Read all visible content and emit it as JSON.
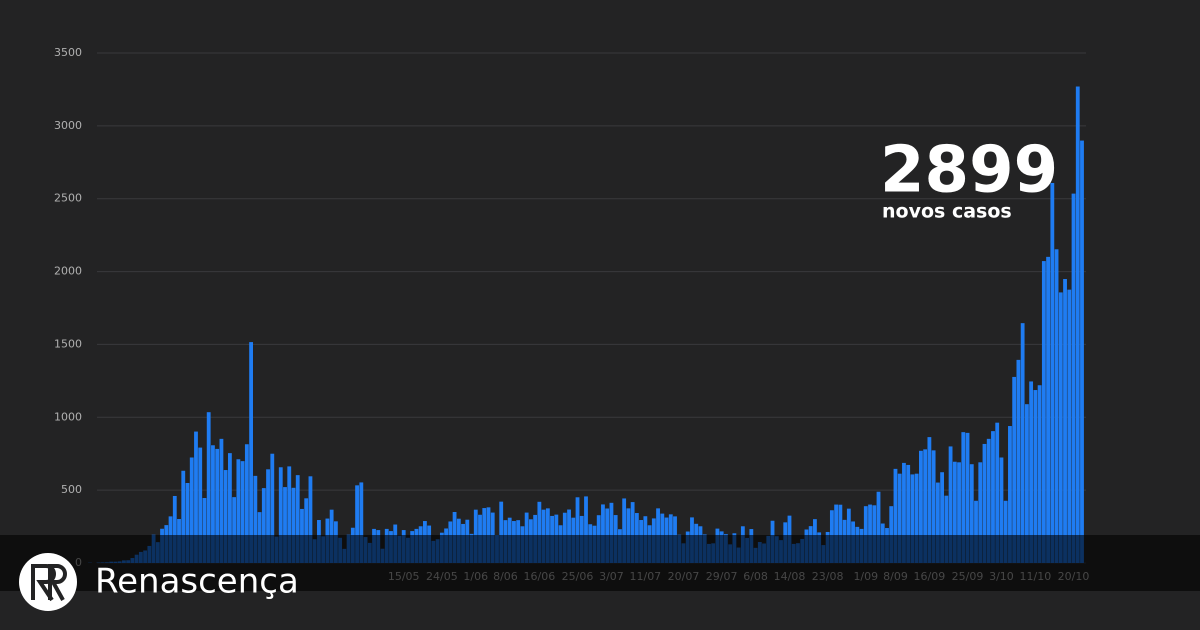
{
  "chart_data": {
    "type": "bar",
    "annotation_value": "2899",
    "annotation_text": "novos casos",
    "brand": "Renascença",
    "color": "#1f7cf2",
    "grid": true,
    "ylim": [
      0,
      3500
    ],
    "yticks": [
      0,
      500,
      1000,
      1500,
      2000,
      2500,
      3000,
      3500
    ],
    "categories": [
      null,
      null,
      null,
      null,
      null,
      null,
      null,
      null,
      null,
      null,
      null,
      null,
      null,
      null,
      null,
      null,
      null,
      null,
      null,
      null,
      null,
      null,
      null,
      null,
      null,
      null,
      null,
      null,
      null,
      null,
      null,
      null,
      null,
      null,
      null,
      null,
      null,
      null,
      null,
      null,
      null,
      null,
      null,
      null,
      null,
      null,
      null,
      null,
      null,
      null,
      null,
      null,
      null,
      null,
      null,
      null,
      null,
      null,
      null,
      null,
      null,
      null,
      null,
      null,
      null,
      null,
      null,
      null,
      null,
      null,
      null,
      null,
      null,
      null,
      "15/05",
      null,
      null,
      null,
      null,
      null,
      null,
      null,
      null,
      "24/05",
      null,
      null,
      null,
      null,
      null,
      null,
      null,
      "1/06",
      null,
      null,
      null,
      null,
      null,
      null,
      "8/06",
      null,
      null,
      null,
      null,
      null,
      null,
      null,
      "16/06",
      null,
      null,
      null,
      null,
      null,
      null,
      null,
      null,
      "25/06",
      null,
      null,
      null,
      null,
      null,
      null,
      null,
      "3/07",
      null,
      null,
      null,
      null,
      null,
      null,
      null,
      "11/07",
      null,
      null,
      null,
      null,
      null,
      null,
      null,
      null,
      "20/07",
      null,
      null,
      null,
      null,
      null,
      null,
      null,
      null,
      "29/07",
      null,
      null,
      null,
      null,
      null,
      null,
      null,
      "6/08",
      null,
      null,
      null,
      null,
      null,
      null,
      null,
      "14/08",
      null,
      null,
      null,
      null,
      null,
      null,
      null,
      null,
      "23/08",
      null,
      null,
      null,
      null,
      null,
      null,
      null,
      null,
      "1/09",
      null,
      null,
      null,
      null,
      null,
      null,
      "8/09",
      null,
      null,
      null,
      null,
      null,
      null,
      null,
      "16/09",
      null,
      null,
      null,
      null,
      null,
      null,
      null,
      null,
      "25/09",
      null,
      null,
      null,
      null,
      null,
      null,
      null,
      "3/10",
      null,
      null,
      null,
      null,
      null,
      null,
      null,
      "11/10",
      null,
      null,
      null,
      null,
      null,
      null,
      null,
      null,
      "20/10",
      null,
      null
    ],
    "values": [
      2,
      0,
      3,
      4,
      5,
      9,
      9,
      11,
      18,
      19,
      34,
      57,
      76,
      86,
      117,
      194,
      143,
      235,
      260,
      320,
      460,
      302,
      633,
      549,
      724,
      902,
      792,
      446,
      1035,
      808,
      783,
      852,
      638,
      754,
      452,
      712,
      699,
      815,
      1516,
      598,
      349,
      514,
      643,
      750,
      181,
      657,
      521,
      663,
      516,
      603,
      371,
      444,
      595,
      163,
      295,
      183,
      305,
      366,
      286,
      173,
      97,
      194,
      242,
      533,
      553,
      178,
      138,
      234,
      226,
      98,
      234,
      219,
      264,
      187,
      226,
      173,
      219,
      234,
      252,
      288,
      257,
      152,
      163,
      208,
      237,
      285,
      350,
      304,
      268,
      297,
      200,
      366,
      331,
      377,
      382,
      346,
      192,
      421,
      294,
      311,
      288,
      294,
      252,
      346,
      300,
      330,
      420,
      366,
      375,
      323,
      332,
      259,
      345,
      367,
      311,
      451,
      323,
      457,
      266,
      256,
      328,
      402,
      374,
      413,
      329,
      232,
      443,
      375,
      418,
      343,
      295,
      321,
      259,
      306,
      375,
      339,
      312,
      334,
      320,
      194,
      135,
      216,
      313,
      269,
      252,
      196,
      131,
      135,
      236,
      217,
      198,
      128,
      204,
      106,
      252,
      172,
      233,
      104,
      144,
      134,
      186,
      290,
      184,
      157,
      279,
      325,
      131,
      136,
      165,
      230,
      253,
      301,
      210,
      123,
      213,
      362,
      401,
      400,
      296,
      373,
      285,
      248,
      234,
      390,
      401,
      396,
      489,
      271,
      240,
      390,
      646,
      613,
      687,
      673,
      608,
      613,
      770,
      780,
      864,
      773,
      552,
      623,
      462,
      800,
      695,
      691,
      898,
      893,
      678,
      427,
      691,
      817,
      852,
      905,
      963,
      724,
      427,
      940,
      1277,
      1394,
      1646,
      1090,
      1246,
      1187,
      1220,
      2072,
      2101,
      2608,
      2153,
      1857,
      1949,
      1876,
      2535,
      3270,
      2899
    ]
  }
}
